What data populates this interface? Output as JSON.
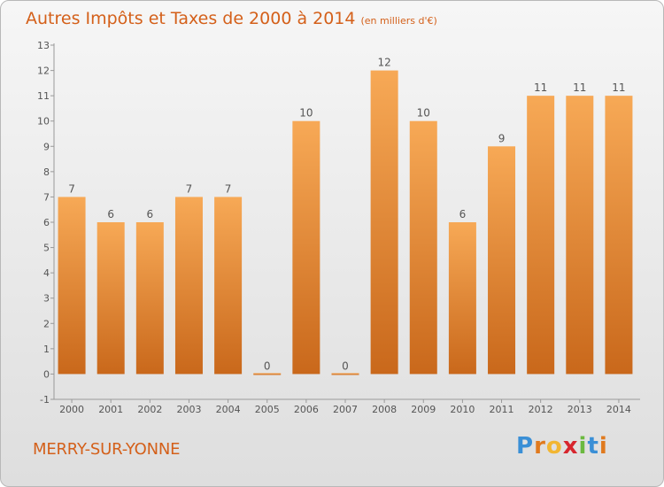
{
  "header": {
    "title": "Autres Impôts et Taxes de 2000 à 2014",
    "unit": "(en milliers d'€)"
  },
  "footer": {
    "commune": "MERRY-SUR-YONNE",
    "logo": "Proxiti",
    "logo_letters": [
      {
        "ch": "P",
        "color": "#3a8fd6"
      },
      {
        "ch": "r",
        "color": "#e07a1e"
      },
      {
        "ch": "o",
        "color": "#f2b632"
      },
      {
        "ch": "x",
        "color": "#d7262e"
      },
      {
        "ch": "i",
        "color": "#6bb93f"
      },
      {
        "ch": "t",
        "color": "#3a8fd6"
      },
      {
        "ch": "i",
        "color": "#e07a1e"
      }
    ]
  },
  "colors": {
    "bar_top": "#f7a956",
    "bar_bottom": "#c9681b",
    "text": "#d4601a"
  },
  "chart_data": {
    "type": "bar",
    "categories": [
      "2000",
      "2001",
      "2002",
      "2003",
      "2004",
      "2005",
      "2006",
      "2007",
      "2008",
      "2009",
      "2010",
      "2011",
      "2012",
      "2013",
      "2014"
    ],
    "values": [
      7,
      6,
      6,
      7,
      7,
      0,
      10,
      0,
      12,
      10,
      6,
      9,
      11,
      11,
      11
    ],
    "ylim": [
      -1,
      13
    ],
    "yticks": [
      "-1",
      "0",
      "1",
      "2",
      "3",
      "4",
      "5",
      "6",
      "7",
      "8",
      "9",
      "10",
      "11",
      "12",
      "13"
    ],
    "grid": false,
    "xlabel": "",
    "ylabel": ""
  }
}
